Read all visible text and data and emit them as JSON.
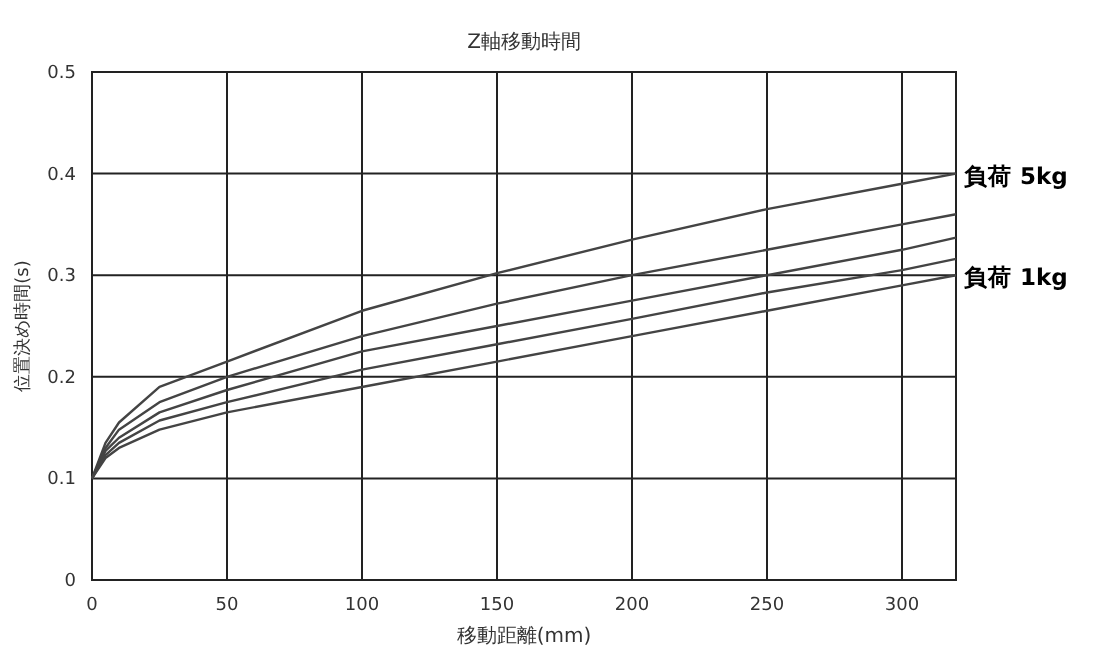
{
  "chart_data": {
    "type": "line",
    "title": "Z軸移動時間",
    "xlabel": "移動距離(mm)",
    "ylabel": "位置決め時間(s)",
    "xlim": [
      0,
      320
    ],
    "xticks": [
      0,
      50,
      100,
      150,
      200,
      250,
      300
    ],
    "ylim": [
      0,
      0.5
    ],
    "yticks": [
      0,
      0.1,
      0.2,
      0.3,
      0.4,
      0.5
    ],
    "grid": true,
    "x": [
      0,
      5,
      10,
      25,
      50,
      100,
      150,
      200,
      250,
      300,
      320
    ],
    "series": [
      {
        "name": "負荷 5kg",
        "color": "#444444",
        "values": [
          0.1,
          0.135,
          0.155,
          0.19,
          0.215,
          0.265,
          0.302,
          0.335,
          0.365,
          0.39,
          0.4
        ]
      },
      {
        "color": "#444444",
        "values": [
          0.1,
          0.13,
          0.148,
          0.175,
          0.2,
          0.24,
          0.272,
          0.3,
          0.325,
          0.35,
          0.36
        ]
      },
      {
        "color": "#444444",
        "values": [
          0.1,
          0.127,
          0.14,
          0.165,
          0.187,
          0.225,
          0.25,
          0.275,
          0.3,
          0.325,
          0.337
        ]
      },
      {
        "color": "#444444",
        "values": [
          0.1,
          0.123,
          0.135,
          0.157,
          0.175,
          0.207,
          0.232,
          0.257,
          0.283,
          0.305,
          0.316
        ]
      },
      {
        "name": "負荷 1kg",
        "color": "#444444",
        "values": [
          0.1,
          0.12,
          0.13,
          0.148,
          0.165,
          0.19,
          0.215,
          0.24,
          0.265,
          0.29,
          0.3
        ]
      }
    ]
  }
}
